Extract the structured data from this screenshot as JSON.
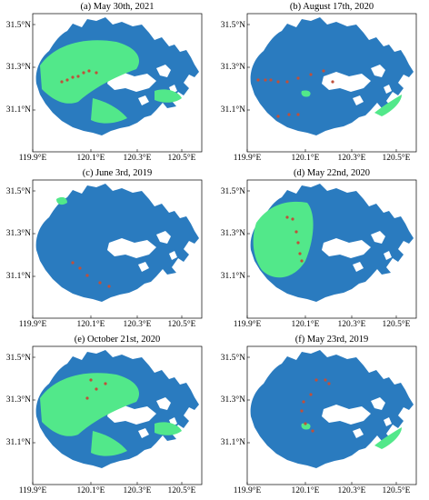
{
  "water_color": "#2a7bbf",
  "algae_color": "#52e88a",
  "point_color": "#c0503a",
  "axis": {
    "y_ticks": [
      "31.5°N",
      "31.3°N",
      "31.1°N"
    ],
    "x_ticks": [
      "119.9°E",
      "120.1°E",
      "120.3°E",
      "120.5°E"
    ]
  },
  "panels": [
    {
      "title": "(a) May 30th, 2021",
      "algae_level": "high"
    },
    {
      "title": "(b) August 17th, 2020",
      "algae_level": "low"
    },
    {
      "title": "(c) June 3rd, 2019",
      "algae_level": "very-low"
    },
    {
      "title": "(d) May 22nd, 2020",
      "algae_level": "medium-west"
    },
    {
      "title": "(e) October 21st, 2020",
      "algae_level": "high"
    },
    {
      "title": "(f) May 23rd, 2019",
      "algae_level": "low"
    }
  ]
}
